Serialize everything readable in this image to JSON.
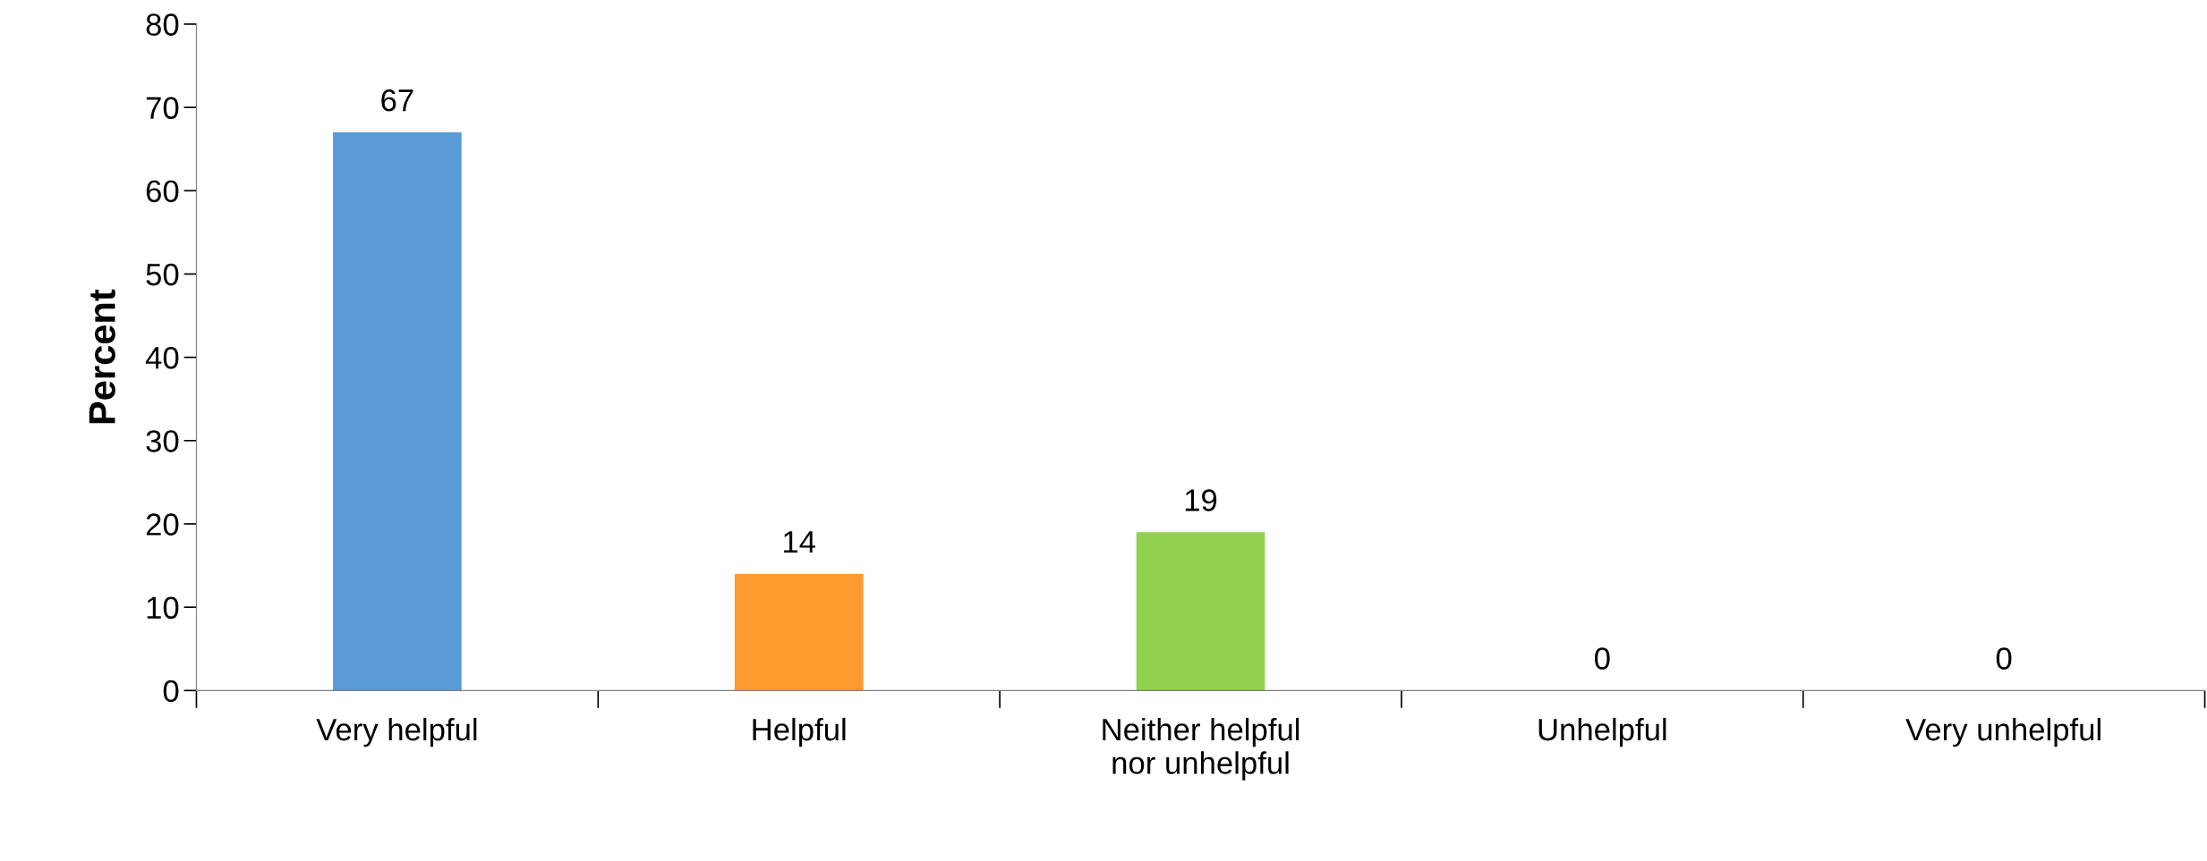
{
  "chart_data": {
    "type": "bar",
    "ylabel": "Percent",
    "categories": [
      "Very helpful",
      "Helpful",
      "Neither helpful\nnor unhelpful",
      "Unhelpful",
      "Very unhelpful"
    ],
    "values": [
      67,
      14,
      19,
      0,
      0
    ],
    "colors": [
      "#5b9bd5",
      "#ff9a2e",
      "#92d050",
      "#a5a5a5",
      "#4472c4"
    ],
    "ylim": [
      0,
      80
    ],
    "yticks": [
      0,
      10,
      20,
      30,
      40,
      50,
      60,
      70,
      80
    ],
    "data_labels": true,
    "grid": false,
    "legend": false
  }
}
